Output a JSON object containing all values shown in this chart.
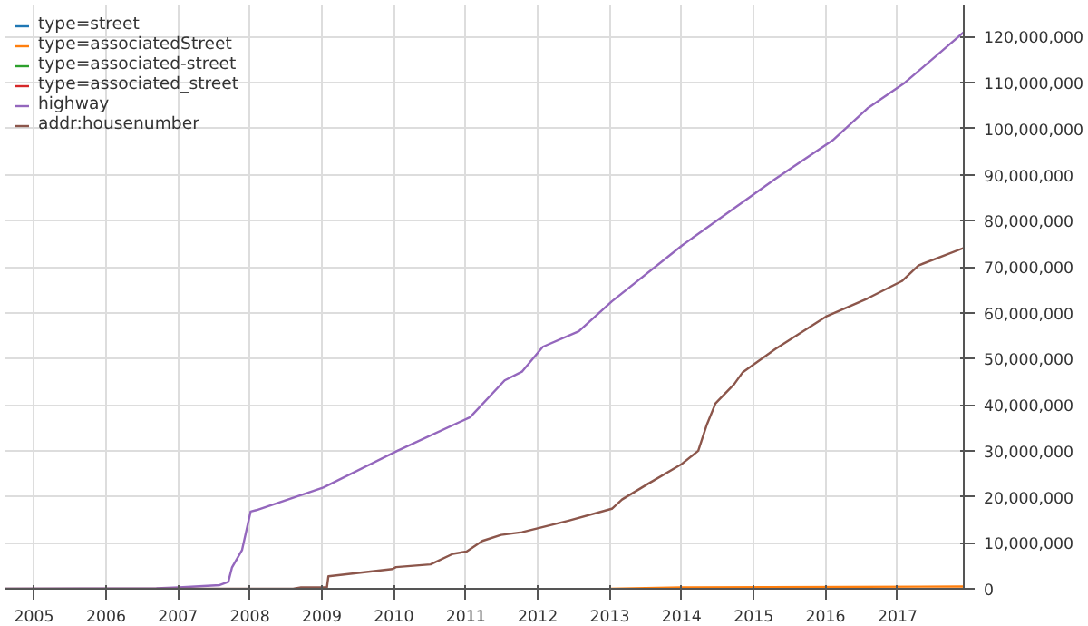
{
  "chart_data": {
    "type": "line",
    "xlim": [
      2004.59,
      2017.92
    ],
    "xticks": [
      {
        "value": 2005,
        "label": "2005"
      },
      {
        "value": 2006,
        "label": "2006"
      },
      {
        "value": 2007,
        "label": "2007"
      },
      {
        "value": 2008,
        "label": "2008"
      },
      {
        "value": 2009,
        "label": "2009"
      },
      {
        "value": 2010,
        "label": "2010"
      },
      {
        "value": 2011,
        "label": "2011"
      },
      {
        "value": 2012,
        "label": "2012"
      },
      {
        "value": 2013,
        "label": "2013"
      },
      {
        "value": 2014,
        "label": "2014"
      },
      {
        "value": 2015,
        "label": "2015"
      },
      {
        "value": 2016,
        "label": "2016"
      },
      {
        "value": 2017,
        "label": "2017"
      }
    ],
    "ylim": [
      0,
      127000000
    ],
    "yticks": [
      0,
      {
        "value": 10000000,
        "label": "10,000,000"
      },
      {
        "value": 20000000,
        "label": "20,000,000"
      },
      {
        "value": 30000000,
        "label": "30,000,000"
      },
      {
        "value": 40000000,
        "label": "40,000,000"
      },
      {
        "value": 50000000,
        "label": "50,000,000"
      },
      {
        "value": 60000000,
        "label": "60,000,000"
      },
      {
        "value": 70000000,
        "label": "70,000,000"
      },
      {
        "value": 80000000,
        "label": "80,000,000"
      },
      {
        "value": 90000000,
        "label": "90,000,000"
      },
      {
        "value": 100000000,
        "label": "100,000,000"
      },
      {
        "value": 110000000,
        "label": "110,000,000"
      },
      {
        "value": 120000000,
        "label": "120,000,000"
      }
    ],
    "grid": true,
    "legend": "top left",
    "marker": "none",
    "line_style": "solid",
    "series": [
      {
        "name": "type=street",
        "color": "#1f77b4"
      },
      {
        "name": "type=associatedStreet",
        "color": "#ff7f0e",
        "x": [
          2013.0,
          2014.0,
          2017.92
        ],
        "values": [
          0,
          300000,
          500000
        ]
      },
      {
        "name": "type=associated-street",
        "color": "#2ca02c"
      },
      {
        "name": "type=associated_street",
        "color": "#d62728"
      },
      {
        "name": "highway",
        "color": "#9467bd",
        "x": [
          2004.59,
          2006.7,
          2007.01,
          2007.58,
          2007.7,
          2007.75,
          2007.89,
          2008.01,
          2008.09,
          2009.02,
          2010.05,
          2011.06,
          2011.54,
          2011.78,
          2012.07,
          2012.57,
          2013.03,
          2014.01,
          2015.3,
          2016.1,
          2016.58,
          2017.1,
          2017.92
        ],
        "values": [
          0,
          100000,
          300000,
          800000,
          1500000,
          4600000,
          8400000,
          16800000,
          17100000,
          22000000,
          30000000,
          37300000,
          45300000,
          47200000,
          52600000,
          56000000,
          62500000,
          74700000,
          89100000,
          97500000,
          104400000,
          110000000,
          121000000
        ]
      },
      {
        "name": "addr:housenumber",
        "color": "#8c564b",
        "x": [
          2004.59,
          2008.6,
          2008.71,
          2009.07,
          2009.09,
          2009.98,
          2010.03,
          2010.51,
          2010.82,
          2011.01,
          2011.23,
          2011.49,
          2011.78,
          2012.43,
          2013.03,
          2013.17,
          2013.53,
          2013.99,
          2014.23,
          2014.35,
          2014.47,
          2014.73,
          2014.85,
          2015.3,
          2016.02,
          2016.58,
          2017.06,
          2017.29,
          2017.92
        ],
        "values": [
          0,
          0,
          300000,
          300000,
          2700000,
          4300000,
          4700000,
          5300000,
          7600000,
          8100000,
          10400000,
          11700000,
          12300000,
          14800000,
          17400000,
          19400000,
          22800000,
          27000000,
          30000000,
          35700000,
          40300000,
          44500000,
          47100000,
          52100000,
          59300000,
          63100000,
          66900000,
          70300000,
          74100000
        ]
      }
    ]
  }
}
